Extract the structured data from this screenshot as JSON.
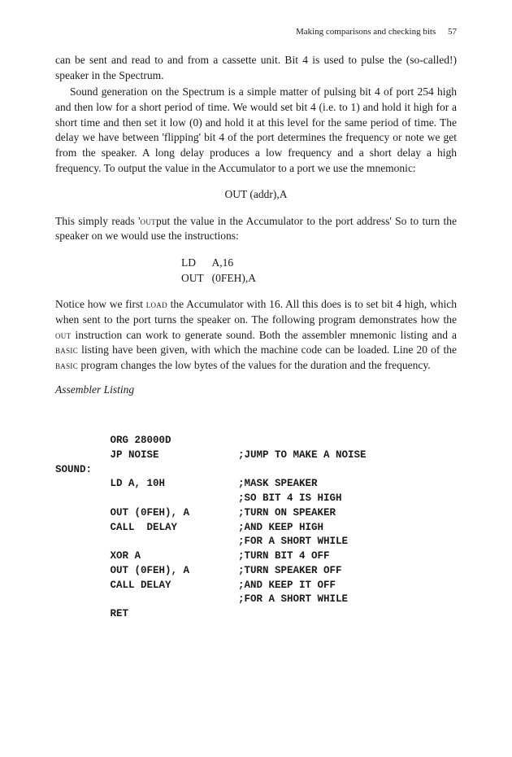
{
  "header": {
    "title": "Making comparisons and checking bits",
    "page": "57"
  },
  "para1a": "can be sent and read to and from a cassette unit. Bit 4 is used to pulse the (so-called!) speaker in the Spectrum.",
  "para1b": "Sound generation on the Spectrum is a simple matter of pulsing bit 4 of port 254 high and then low for a short period of time. We would set bit 4 (i.e. to 1) and hold it high for a short time and then set it low (0) and hold it at this level for the same period of time. The delay we have between 'flipping' bit 4 of the port determines the frequency or note we get from the speaker. A long delay produces a low frequency and a short delay a high frequency. To output the value in the Accumulator to a port we use the mnemonic:",
  "code1": "OUT  (addr),A",
  "para2a": "This simply reads '",
  "para2_sc1": "out",
  "para2b": "put the value in the Accumulator to the port address' So to turn the speaker on we would use the instructions:",
  "code2": "LD      A,16\nOUT   (0FEH),A",
  "para3a": "Notice how we first ",
  "para3_sc1": "load",
  "para3b": " the Accumulator with 16. All this does is to set bit 4 high, which when sent to the port turns the speaker on. The following program demonstrates how the ",
  "para3_sc2": "out",
  "para3c": " instruction can work to generate sound. Both the assembler mnemonic listing and a ",
  "para3_sc3": "basic",
  "para3d": " listing have been given, with which the machine code can be loaded. Line 20 of the ",
  "para3_sc4": "basic",
  "para3e": " program changes the low bytes of the values for the duration and the frequency.",
  "asm_heading": "Assembler Listing",
  "asm": "         ORG 28000D\n         JP NOISE             ;JUMP TO MAKE A NOISE\nSOUND:\n         LD A, 10H            ;MASK SPEAKER\n                              ;SO BIT 4 IS HIGH\n         OUT (0FEH), A        ;TURN ON SPEAKER\n         CALL  DELAY          ;AND KEEP HIGH\n                              ;FOR A SHORT WHILE\n         XOR A                ;TURN BIT 4 OFF\n         OUT (0FEH), A        ;TURN SPEAKER OFF\n         CALL DELAY           ;AND KEEP IT OFF\n                              ;FOR A SHORT WHILE\n         RET"
}
